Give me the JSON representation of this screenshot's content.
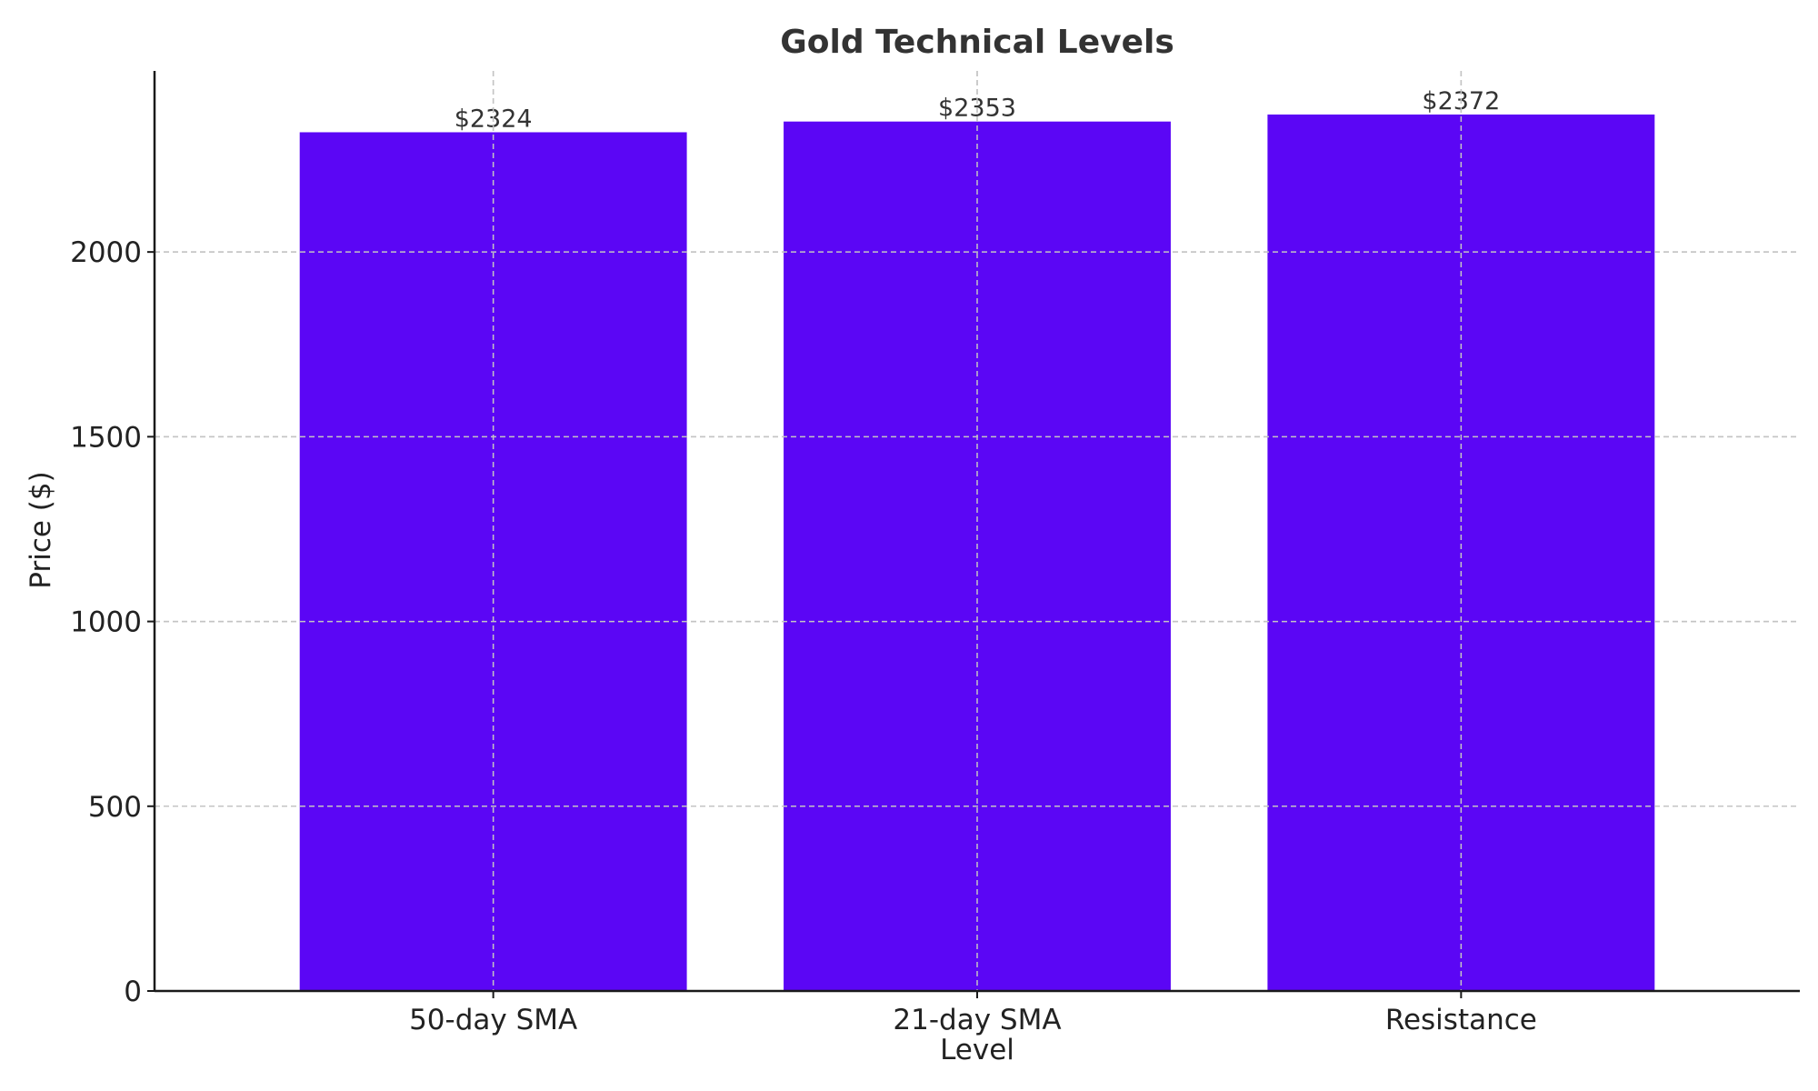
{
  "chart_data": {
    "type": "bar",
    "title": "Gold Technical Levels",
    "xlabel": "Level",
    "ylabel": "Price ($)",
    "categories": [
      "50-day SMA",
      "21-day SMA",
      "Resistance"
    ],
    "values": [
      2324,
      2353,
      2372
    ],
    "value_labels": [
      "$2324",
      "$2353",
      "$2372"
    ],
    "yticks": [
      0,
      500,
      1000,
      1500,
      2000
    ],
    "ytick_labels": [
      "0",
      "500",
      "1000",
      "1500",
      "2000"
    ],
    "ylim": [
      0,
      2490
    ],
    "grid": true,
    "bar_color": "#5b06f5"
  }
}
